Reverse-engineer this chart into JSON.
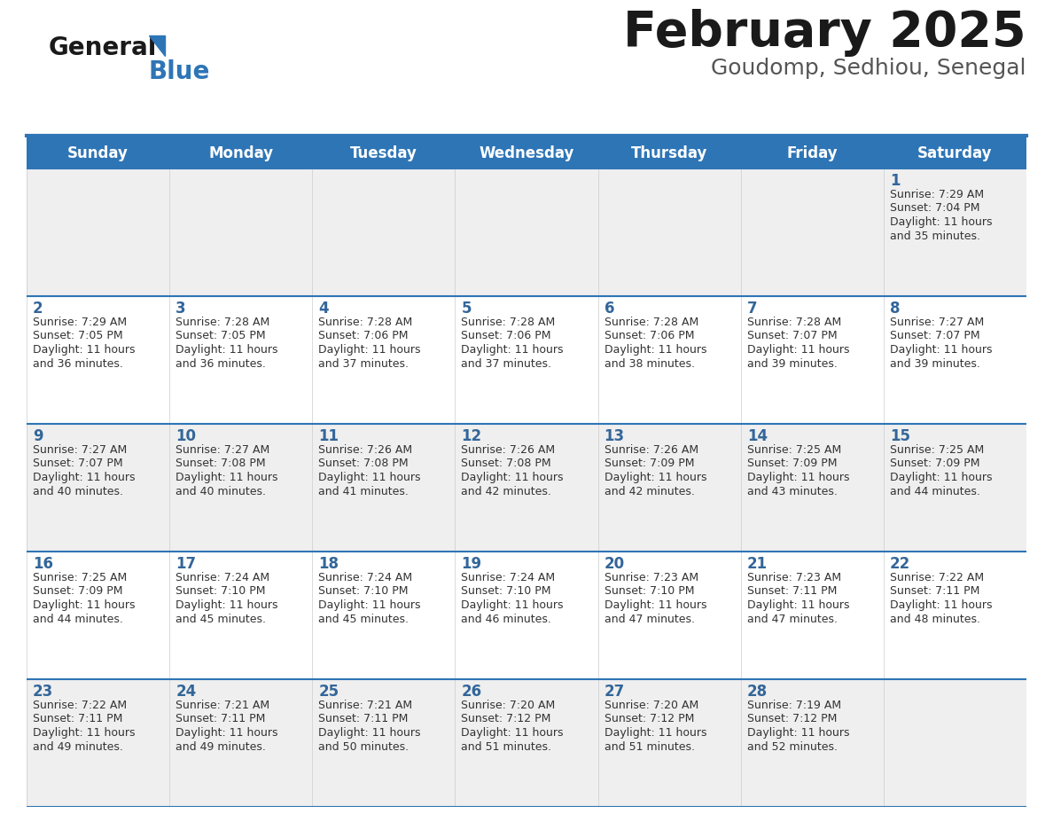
{
  "title": "February 2025",
  "subtitle": "Goudomp, Sedhiou, Senegal",
  "days_of_week": [
    "Sunday",
    "Monday",
    "Tuesday",
    "Wednesday",
    "Thursday",
    "Friday",
    "Saturday"
  ],
  "header_bg": "#2E75B6",
  "header_text": "#FFFFFF",
  "row_bg_odd": "#EFEFEF",
  "row_bg_even": "#FFFFFF",
  "cell_border": "#2E75B6",
  "day_number_color": "#336699",
  "text_color": "#333333",
  "title_color": "#1a1a1a",
  "subtitle_color": "#555555",
  "logo_general_color": "#1a1a1a",
  "logo_blue_color": "#2E75B6",
  "logo_triangle_color": "#2E75B6",
  "calendar_data": [
    [
      null,
      null,
      null,
      null,
      null,
      null,
      {
        "day": 1,
        "sunrise": "7:29 AM",
        "sunset": "7:04 PM",
        "daylight": "11 hours",
        "daylight2": "and 35 minutes."
      }
    ],
    [
      {
        "day": 2,
        "sunrise": "7:29 AM",
        "sunset": "7:05 PM",
        "daylight": "11 hours",
        "daylight2": "and 36 minutes."
      },
      {
        "day": 3,
        "sunrise": "7:28 AM",
        "sunset": "7:05 PM",
        "daylight": "11 hours",
        "daylight2": "and 36 minutes."
      },
      {
        "day": 4,
        "sunrise": "7:28 AM",
        "sunset": "7:06 PM",
        "daylight": "11 hours",
        "daylight2": "and 37 minutes."
      },
      {
        "day": 5,
        "sunrise": "7:28 AM",
        "sunset": "7:06 PM",
        "daylight": "11 hours",
        "daylight2": "and 37 minutes."
      },
      {
        "day": 6,
        "sunrise": "7:28 AM",
        "sunset": "7:06 PM",
        "daylight": "11 hours",
        "daylight2": "and 38 minutes."
      },
      {
        "day": 7,
        "sunrise": "7:28 AM",
        "sunset": "7:07 PM",
        "daylight": "11 hours",
        "daylight2": "and 39 minutes."
      },
      {
        "day": 8,
        "sunrise": "7:27 AM",
        "sunset": "7:07 PM",
        "daylight": "11 hours",
        "daylight2": "and 39 minutes."
      }
    ],
    [
      {
        "day": 9,
        "sunrise": "7:27 AM",
        "sunset": "7:07 PM",
        "daylight": "11 hours",
        "daylight2": "and 40 minutes."
      },
      {
        "day": 10,
        "sunrise": "7:27 AM",
        "sunset": "7:08 PM",
        "daylight": "11 hours",
        "daylight2": "and 40 minutes."
      },
      {
        "day": 11,
        "sunrise": "7:26 AM",
        "sunset": "7:08 PM",
        "daylight": "11 hours",
        "daylight2": "and 41 minutes."
      },
      {
        "day": 12,
        "sunrise": "7:26 AM",
        "sunset": "7:08 PM",
        "daylight": "11 hours",
        "daylight2": "and 42 minutes."
      },
      {
        "day": 13,
        "sunrise": "7:26 AM",
        "sunset": "7:09 PM",
        "daylight": "11 hours",
        "daylight2": "and 42 minutes."
      },
      {
        "day": 14,
        "sunrise": "7:25 AM",
        "sunset": "7:09 PM",
        "daylight": "11 hours",
        "daylight2": "and 43 minutes."
      },
      {
        "day": 15,
        "sunrise": "7:25 AM",
        "sunset": "7:09 PM",
        "daylight": "11 hours",
        "daylight2": "and 44 minutes."
      }
    ],
    [
      {
        "day": 16,
        "sunrise": "7:25 AM",
        "sunset": "7:09 PM",
        "daylight": "11 hours",
        "daylight2": "and 44 minutes."
      },
      {
        "day": 17,
        "sunrise": "7:24 AM",
        "sunset": "7:10 PM",
        "daylight": "11 hours",
        "daylight2": "and 45 minutes."
      },
      {
        "day": 18,
        "sunrise": "7:24 AM",
        "sunset": "7:10 PM",
        "daylight": "11 hours",
        "daylight2": "and 45 minutes."
      },
      {
        "day": 19,
        "sunrise": "7:24 AM",
        "sunset": "7:10 PM",
        "daylight": "11 hours",
        "daylight2": "and 46 minutes."
      },
      {
        "day": 20,
        "sunrise": "7:23 AM",
        "sunset": "7:10 PM",
        "daylight": "11 hours",
        "daylight2": "and 47 minutes."
      },
      {
        "day": 21,
        "sunrise": "7:23 AM",
        "sunset": "7:11 PM",
        "daylight": "11 hours",
        "daylight2": "and 47 minutes."
      },
      {
        "day": 22,
        "sunrise": "7:22 AM",
        "sunset": "7:11 PM",
        "daylight": "11 hours",
        "daylight2": "and 48 minutes."
      }
    ],
    [
      {
        "day": 23,
        "sunrise": "7:22 AM",
        "sunset": "7:11 PM",
        "daylight": "11 hours",
        "daylight2": "and 49 minutes."
      },
      {
        "day": 24,
        "sunrise": "7:21 AM",
        "sunset": "7:11 PM",
        "daylight": "11 hours",
        "daylight2": "and 49 minutes."
      },
      {
        "day": 25,
        "sunrise": "7:21 AM",
        "sunset": "7:11 PM",
        "daylight": "11 hours",
        "daylight2": "and 50 minutes."
      },
      {
        "day": 26,
        "sunrise": "7:20 AM",
        "sunset": "7:12 PM",
        "daylight": "11 hours",
        "daylight2": "and 51 minutes."
      },
      {
        "day": 27,
        "sunrise": "7:20 AM",
        "sunset": "7:12 PM",
        "daylight": "11 hours",
        "daylight2": "and 51 minutes."
      },
      {
        "day": 28,
        "sunrise": "7:19 AM",
        "sunset": "7:12 PM",
        "daylight": "11 hours",
        "daylight2": "and 52 minutes."
      },
      null
    ]
  ]
}
